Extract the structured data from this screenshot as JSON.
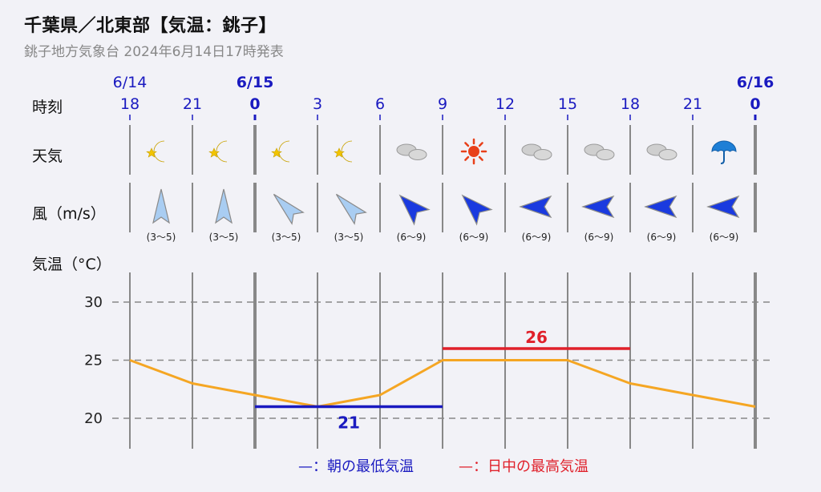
{
  "header": {
    "title": "千葉県／北東部【気温：銚子】",
    "subtitle": "銚子地方気象台 2024年6月14日17時発表"
  },
  "row_labels": {
    "time": "時刻",
    "weather": "天気",
    "wind": "風（m/s）",
    "temp": "気温（°C）"
  },
  "dates": [
    {
      "label": "6/14",
      "col": 0,
      "bold": false
    },
    {
      "label": "6/15",
      "col": 2,
      "bold": true
    },
    {
      "label": "6/16",
      "col": 10,
      "bold": true
    }
  ],
  "hours": [
    "18",
    "21",
    "0",
    "3",
    "6",
    "9",
    "12",
    "15",
    "18",
    "21",
    "0"
  ],
  "bold_hour_index": [
    2,
    10
  ],
  "weather": [
    "moon-icon",
    "moon-icon",
    "moon-icon",
    "moon-icon",
    "cloud-icon",
    "sun-icon",
    "cloud-icon",
    "cloud-icon",
    "cloud-icon",
    "umbrella-icon"
  ],
  "wind": [
    {
      "dir": "S",
      "speed": "(3〜5)"
    },
    {
      "dir": "S",
      "speed": "(3〜5)"
    },
    {
      "dir": "NW",
      "speed": "(3〜5)"
    },
    {
      "dir": "NW",
      "speed": "(3〜5)"
    },
    {
      "dir": "NW",
      "speed": "(6〜9)"
    },
    {
      "dir": "NW",
      "speed": "(6〜9)"
    },
    {
      "dir": "E",
      "speed": "(6〜9)"
    },
    {
      "dir": "E",
      "speed": "(6〜9)"
    },
    {
      "dir": "E",
      "speed": "(6〜9)"
    },
    {
      "dir": "E",
      "speed": "(6〜9)"
    }
  ],
  "colors": {
    "line": "#f5a623",
    "min": "#1a1ac0",
    "max": "#e0202a",
    "grid": "#888888",
    "wind_light": "#a9cdf2",
    "wind_strong": "#1a3adf"
  },
  "chart_data": {
    "type": "line",
    "x": [
      "18",
      "21",
      "0",
      "3",
      "6",
      "9",
      "12",
      "15",
      "18",
      "21",
      "0"
    ],
    "series": [
      {
        "values": [
          25,
          23,
          22,
          21,
          22,
          25,
          25,
          25,
          23,
          22,
          21
        ]
      }
    ],
    "ylim": [
      17.5,
      32.5
    ],
    "yticks": [
      20,
      25,
      30
    ],
    "min_temp": {
      "value": 21,
      "label": "21",
      "from": 2,
      "to": 5
    },
    "max_temp": {
      "value": 26,
      "label": "26",
      "from": 5,
      "to": 8
    }
  },
  "legend": {
    "min": "—：朝の最低気温",
    "max": "—：日中の最高気温"
  }
}
